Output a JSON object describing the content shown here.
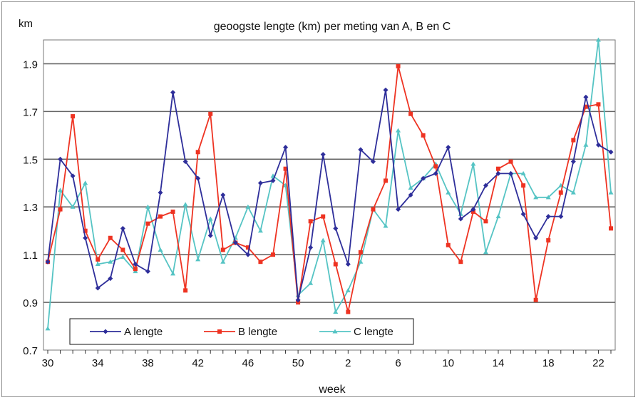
{
  "chart_data": {
    "type": "line",
    "title": "geoogste lengte (km) per meting  van A, B en C",
    "ylabel": "km",
    "xlabel": "week",
    "ylim": [
      0.7,
      2.0
    ],
    "yticks": [
      "0.7",
      "0.9",
      "1.1",
      "1.3",
      "1.5",
      "1.7",
      "1.9"
    ],
    "x_tick_labels": [
      "30",
      "34",
      "38",
      "42",
      "46",
      "50",
      "2",
      "6",
      "10",
      "14",
      "18",
      "22"
    ],
    "x": [
      "30",
      "31",
      "32",
      "33",
      "34",
      "35",
      "36",
      "37",
      "38",
      "39",
      "40",
      "41",
      "42",
      "43",
      "44",
      "45",
      "46",
      "47",
      "48",
      "49",
      "50",
      "51",
      "52",
      "1",
      "2",
      "3",
      "4",
      "5",
      "6",
      "7",
      "8",
      "9",
      "10",
      "11",
      "12",
      "13",
      "14",
      "15",
      "16",
      "17",
      "18",
      "19",
      "20",
      "21",
      "22",
      "23"
    ],
    "grid": true,
    "legend_position": "bottom-left",
    "series": [
      {
        "name": "A lengte",
        "color": "#2e2e9a",
        "marker": "diamond",
        "values": [
          1.07,
          1.5,
          1.43,
          1.17,
          0.96,
          1.0,
          1.21,
          1.06,
          1.03,
          1.36,
          1.78,
          1.49,
          1.42,
          1.18,
          1.35,
          1.15,
          1.1,
          1.4,
          1.41,
          1.55,
          0.91,
          1.13,
          1.52,
          1.21,
          1.06,
          1.54,
          1.49,
          1.79,
          1.29,
          1.35,
          1.42,
          1.44,
          1.55,
          1.25,
          1.29,
          1.39,
          1.44,
          1.44,
          1.27,
          1.17,
          1.26,
          1.26,
          1.49,
          1.76,
          1.56,
          1.53
        ]
      },
      {
        "name": "B lengte",
        "color": "#ee3322",
        "marker": "square",
        "values": [
          1.07,
          1.29,
          1.68,
          1.2,
          1.08,
          1.17,
          1.12,
          1.04,
          1.23,
          1.26,
          1.28,
          0.95,
          1.53,
          1.69,
          1.12,
          1.15,
          1.13,
          1.07,
          1.1,
          1.46,
          0.9,
          1.24,
          1.26,
          1.06,
          0.86,
          1.11,
          1.29,
          1.41,
          1.89,
          1.69,
          1.6,
          1.47,
          1.14,
          1.07,
          1.28,
          1.24,
          1.46,
          1.49,
          1.39,
          0.91,
          1.16,
          1.36,
          1.58,
          1.72,
          1.73,
          1.21
        ]
      },
      {
        "name": "C lengte",
        "color": "#55c4c4",
        "marker": "triangle",
        "values": [
          0.79,
          1.37,
          1.3,
          1.4,
          1.06,
          1.07,
          1.09,
          1.03,
          1.3,
          1.12,
          1.02,
          1.31,
          1.08,
          1.25,
          1.07,
          1.17,
          1.3,
          1.2,
          1.43,
          1.39,
          0.93,
          0.98,
          1.16,
          0.86,
          0.95,
          1.07,
          1.29,
          1.22,
          1.62,
          1.38,
          1.42,
          1.48,
          1.36,
          1.27,
          1.48,
          1.11,
          1.26,
          1.44,
          1.44,
          1.34,
          1.34,
          1.39,
          1.36,
          1.56,
          2.0,
          1.36
        ]
      }
    ]
  }
}
